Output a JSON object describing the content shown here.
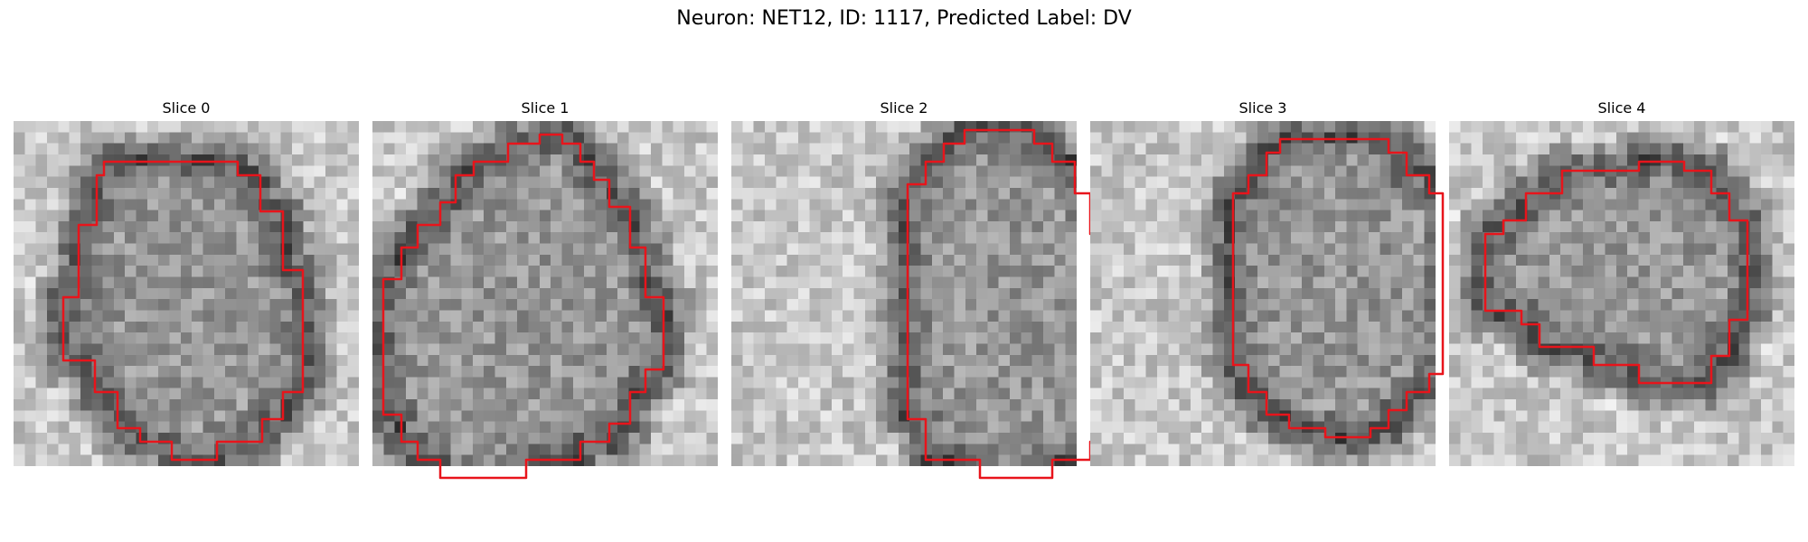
{
  "figure": {
    "title": "Neuron: NET12, ID: 1117, Predicted Label: DV",
    "contour_color": "#e8141b"
  },
  "slices": [
    {
      "title": "Slice 0",
      "seed": 11
    },
    {
      "title": "Slice 1",
      "seed": 23
    },
    {
      "title": "Slice 2",
      "seed": 37
    },
    {
      "title": "Slice 3",
      "seed": 51
    },
    {
      "title": "Slice 4",
      "seed": 67
    }
  ]
}
